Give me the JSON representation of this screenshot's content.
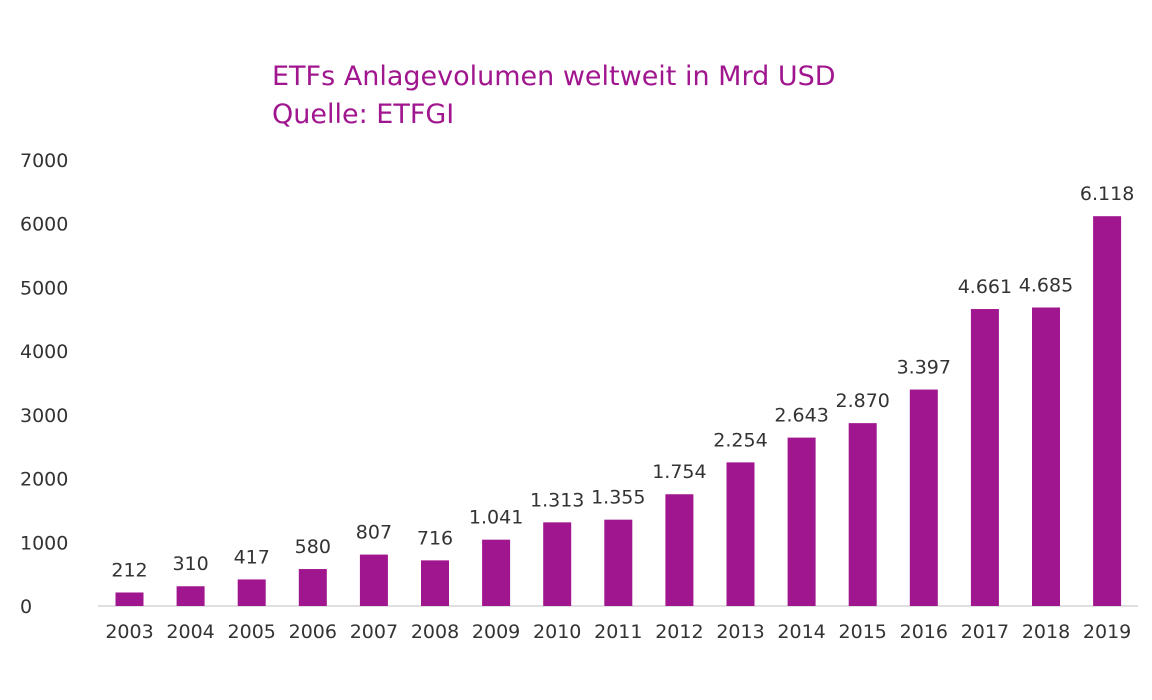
{
  "chart_data": {
    "type": "bar",
    "title": "ETFs Anlagevolumen weltweit in Mrd USD",
    "subtitle": "Quelle: ETFGI",
    "categories": [
      "2003",
      "2004",
      "2005",
      "2006",
      "2007",
      "2008",
      "2009",
      "2010",
      "2011",
      "2012",
      "2013",
      "2014",
      "2015",
      "2016",
      "2017",
      "2018",
      "2019"
    ],
    "values": [
      212,
      310,
      417,
      580,
      807,
      716,
      1041,
      1313,
      1355,
      1754,
      2254,
      2643,
      2870,
      3397,
      4661,
      4685,
      6118
    ],
    "value_labels": [
      "212",
      "310",
      "417",
      "580",
      "807",
      "716",
      "1.041",
      "1.313",
      "1.355",
      "1.754",
      "2.254",
      "2.643",
      "2.870",
      "3.397",
      "4.661",
      "4.685",
      "6.118"
    ],
    "y_ticks": [
      "0",
      "1000",
      "2000",
      "3000",
      "4000",
      "5000",
      "6000",
      "7000"
    ],
    "ylim": [
      0,
      7000
    ],
    "bar_color": "#a0168f",
    "grid": false,
    "legend": "none"
  }
}
